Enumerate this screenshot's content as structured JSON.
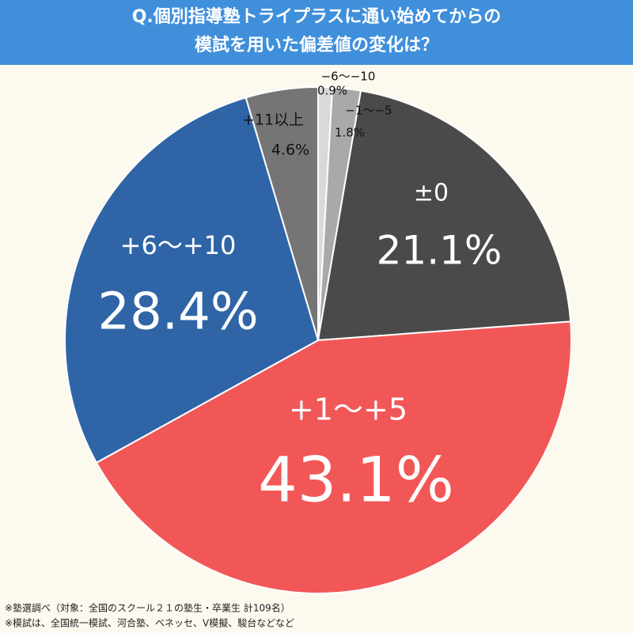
{
  "chart_data": {
    "type": "pie",
    "title": [
      "Q.個別指導塾トライプラスに通い始めてからの",
      "模試を用いた偏差値の変化は？"
    ],
    "categories": [
      "−6〜−10",
      "−1〜−5",
      "±0",
      "+1〜+5",
      "+6〜+10",
      "+11以上"
    ],
    "values": [
      0.9,
      1.8,
      21.1,
      43.1,
      28.4,
      4.6
    ],
    "value_labels": [
      "0.9%",
      "1.8%",
      "21.1%",
      "43.1%",
      "28.4%",
      "4.6%"
    ],
    "colors": [
      "#d9d9d9",
      "#a9a9a9",
      "#4a4a4a",
      "#f25757",
      "#2f65a7",
      "#757575"
    ],
    "notes": [
      "※塾選調べ（対象：全国のスクール２１の塾生・卒業生 計109名）",
      "※模試は、全国統一模試、河合塾、ベネッセ、V模擬、駿台などなど"
    ]
  }
}
